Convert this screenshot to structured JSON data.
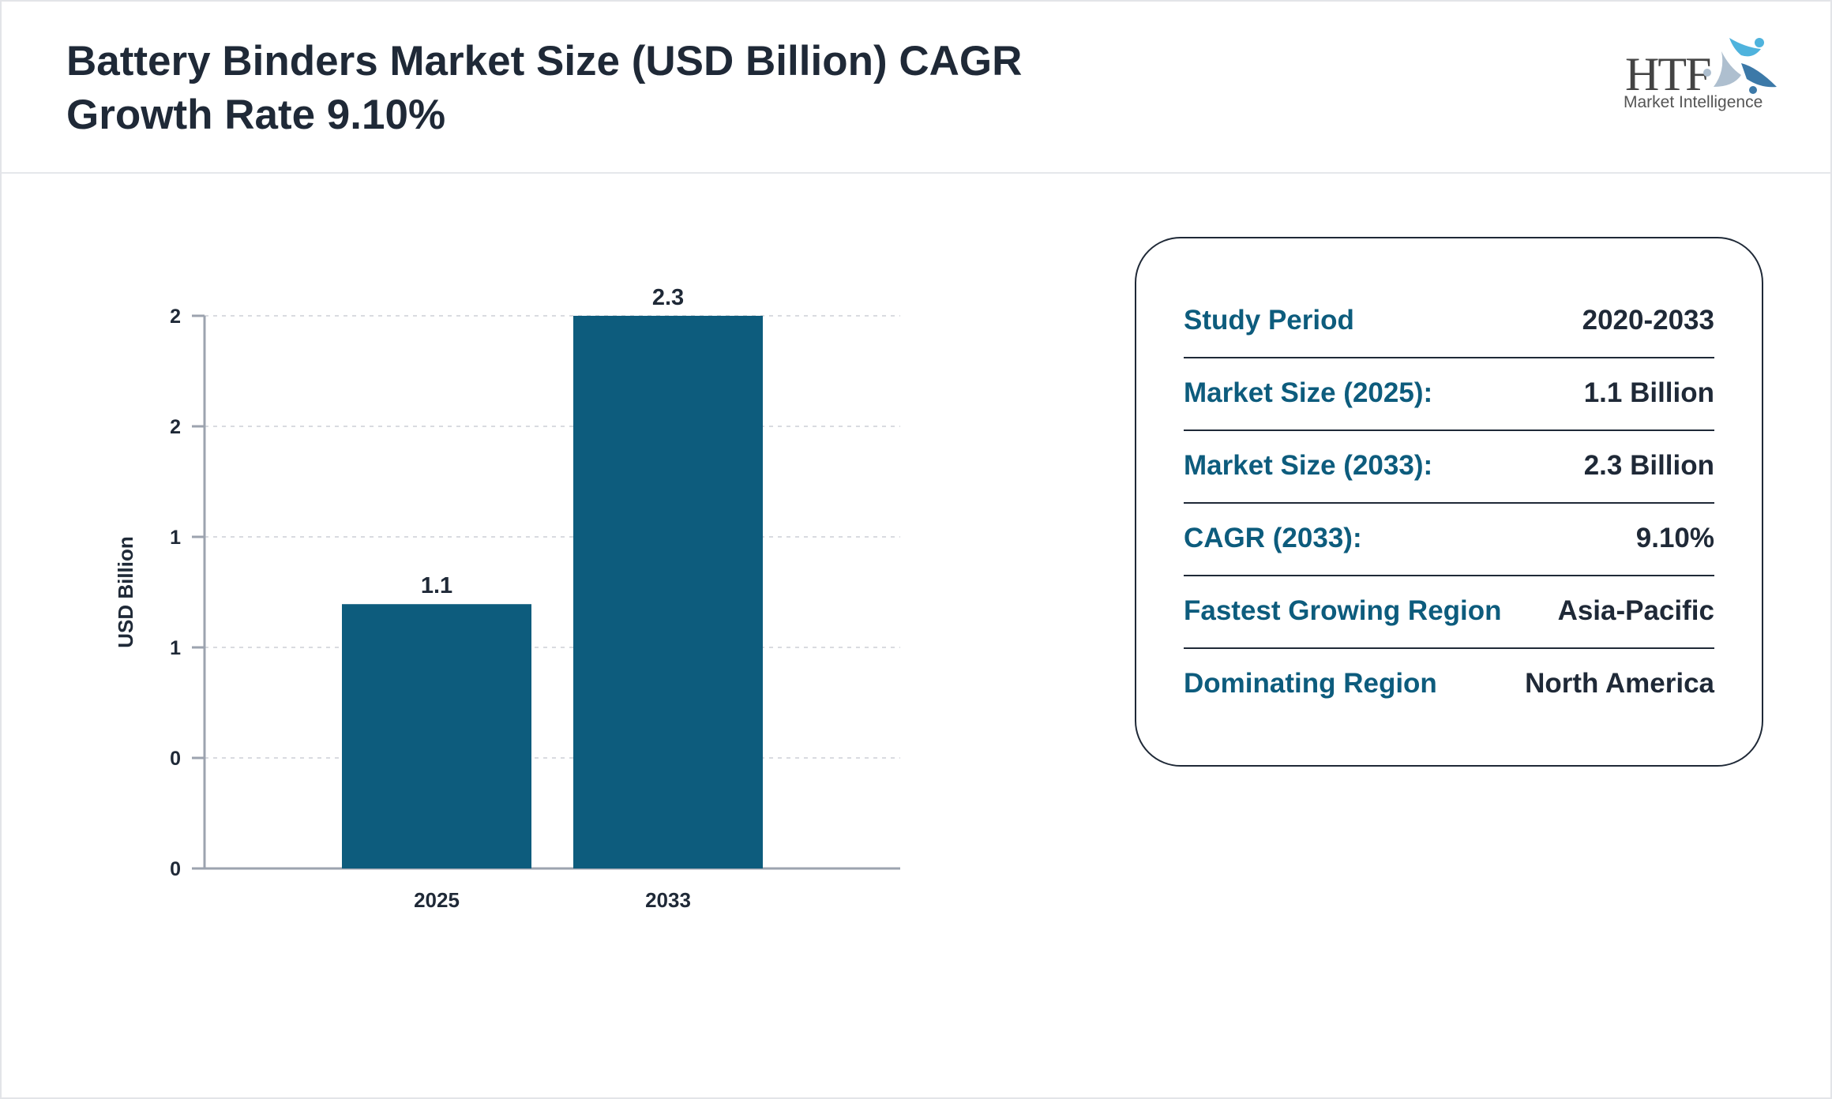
{
  "header": {
    "title_line1": "Battery Binders Market Size (USD Billion) CAGR",
    "title_line2": "Growth Rate 9.10%",
    "logo_text": "HTF Market Intelligence"
  },
  "chart_data": {
    "type": "bar",
    "categories": [
      "2025",
      "2033"
    ],
    "values": [
      1.1,
      2.3
    ],
    "data_labels": [
      "1.1",
      "2.3"
    ],
    "xlabel": "",
    "ylabel": "USD Billion",
    "ylim": [
      0,
      2.3
    ],
    "yticks": [
      0,
      0.46,
      0.92,
      1.38,
      1.84,
      2.3
    ],
    "ytick_labels": [
      "0",
      "0",
      "1",
      "1",
      "2",
      "2"
    ],
    "grid": true,
    "bar_color": "#0d5c7d"
  },
  "summary": {
    "rows": [
      {
        "label": "Study Period",
        "value": "2020-2033"
      },
      {
        "label": "Market Size (2025):",
        "value": "1.1 Billion"
      },
      {
        "label": "Market Size (2033):",
        "value": "2.3 Billion"
      },
      {
        "label": "CAGR (2033):",
        "value": "9.10%"
      },
      {
        "label": "Fastest Growing Region",
        "value": "Asia-Pacific"
      },
      {
        "label": "Dominating Region",
        "value": "North America"
      }
    ]
  },
  "colors": {
    "accent": "#0d5c7d",
    "text": "#1f2937"
  }
}
